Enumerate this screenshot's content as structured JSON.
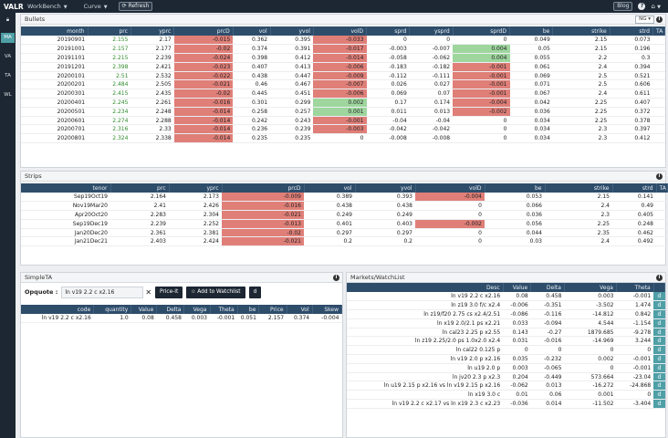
{
  "topbar": {
    "logo": "VALR",
    "menus": [
      "WorkBench",
      "Curve"
    ],
    "refresh_label": "Refresh",
    "blog_label": "Blog",
    "help_glyph": "?",
    "user_glyph": "⌂"
  },
  "sidebar": {
    "items": [
      "MA",
      "VA",
      "TA",
      "WL"
    ],
    "active": "MA"
  },
  "bullets": {
    "title": "Bullets",
    "selector": "NG",
    "columns": [
      "month",
      "prc",
      "yprc",
      "prcD",
      "vol",
      "yvol",
      "volD",
      "sprd",
      "ysprd",
      "sprdD",
      "be",
      "strike",
      "strd",
      "TA"
    ],
    "rows": [
      [
        "20190901",
        "2.155",
        "2.17",
        "-0.015",
        "0.362",
        "0.395",
        "-0.033",
        "0",
        "0",
        "0",
        "0.049",
        "2.15",
        "0.073",
        ""
      ],
      [
        "20191001",
        "2.157",
        "2.177",
        "-0.02",
        "0.374",
        "0.391",
        "-0.017",
        "-0.003",
        "-0.007",
        "0.004",
        "0.05",
        "2.15",
        "0.196",
        ""
      ],
      [
        "20191101",
        "2.215",
        "2.239",
        "-0.024",
        "0.398",
        "0.412",
        "-0.014",
        "-0.058",
        "-0.062",
        "0.004",
        "0.055",
        "2.2",
        "0.3",
        ""
      ],
      [
        "20191201",
        "2.398",
        "2.421",
        "-0.023",
        "0.407",
        "0.413",
        "-0.006",
        "-0.183",
        "-0.182",
        "-0.001",
        "0.061",
        "2.4",
        "0.394",
        ""
      ],
      [
        "20200101",
        "2.51",
        "2.532",
        "-0.022",
        "0.438",
        "0.447",
        "-0.009",
        "-0.112",
        "-0.111",
        "-0.001",
        "0.069",
        "2.5",
        "0.521",
        ""
      ],
      [
        "20200201",
        "2.484",
        "2.505",
        "-0.021",
        "0.46",
        "0.467",
        "-0.007",
        "0.026",
        "0.027",
        "-0.001",
        "0.071",
        "2.5",
        "0.606",
        ""
      ],
      [
        "20200301",
        "2.415",
        "2.435",
        "-0.02",
        "0.445",
        "0.451",
        "-0.006",
        "0.069",
        "0.07",
        "-0.001",
        "0.067",
        "2.4",
        "0.611",
        ""
      ],
      [
        "20200401",
        "2.245",
        "2.261",
        "-0.016",
        "0.301",
        "0.299",
        "0.002",
        "0.17",
        "0.174",
        "-0.004",
        "0.042",
        "2.25",
        "0.407",
        ""
      ],
      [
        "20200501",
        "2.234",
        "2.248",
        "-0.014",
        "0.258",
        "0.257",
        "0.001",
        "0.011",
        "0.013",
        "-0.002",
        "0.036",
        "2.25",
        "0.372",
        ""
      ],
      [
        "20200601",
        "2.274",
        "2.288",
        "-0.014",
        "0.242",
        "0.243",
        "-0.001",
        "-0.04",
        "-0.04",
        "0",
        "0.034",
        "2.25",
        "0.378",
        ""
      ],
      [
        "20200701",
        "2.316",
        "2.33",
        "-0.014",
        "0.236",
        "0.239",
        "-0.003",
        "-0.042",
        "-0.042",
        "0",
        "0.034",
        "2.3",
        "0.397",
        ""
      ],
      [
        "20200801",
        "2.324",
        "2.338",
        "-0.014",
        "0.235",
        "0.235",
        "0",
        "-0.008",
        "-0.008",
        "0",
        "0.034",
        "2.3",
        "0.412",
        ""
      ]
    ]
  },
  "strips": {
    "title": "Strips",
    "columns": [
      "tenor",
      "prc",
      "yprc",
      "prcD",
      "vol",
      "yvol",
      "volD",
      "be",
      "strike",
      "strd",
      "TA"
    ],
    "rows": [
      [
        "Sep19Oct19",
        "2.164",
        "2.173",
        "-0.009",
        "0.389",
        "0.393",
        "-0.004",
        "0.053",
        "2.15",
        "0.141",
        ""
      ],
      [
        "Nov19Mar20",
        "2.41",
        "2.426",
        "-0.016",
        "0.438",
        "0.438",
        "0",
        "0.066",
        "2.4",
        "0.49",
        ""
      ],
      [
        "Apr20Oct20",
        "2.283",
        "2.304",
        "-0.021",
        "0.249",
        "0.249",
        "0",
        "0.036",
        "2.3",
        "0.405",
        ""
      ],
      [
        "Sep19Dec19",
        "2.239",
        "2.252",
        "-0.013",
        "0.401",
        "0.403",
        "-0.002",
        "0.056",
        "2.25",
        "0.248",
        ""
      ],
      [
        "Jan20Dec20",
        "2.361",
        "2.381",
        "-0.02",
        "0.297",
        "0.297",
        "0",
        "0.044",
        "2.35",
        "0.462",
        ""
      ],
      [
        "Jan21Dec21",
        "2.403",
        "2.424",
        "-0.021",
        "0.2",
        "0.2",
        "0",
        "0.03",
        "2.4",
        "0.492",
        ""
      ]
    ]
  },
  "simpleta": {
    "title": "SimpleTA",
    "opquote_label": "Opquote :",
    "opquote_value": "ln v19 2.2 c x2.16",
    "price_it_label": "Price-It",
    "add_watchlist_label": "☆ Add to Watchlist",
    "d_label": "d",
    "columns": [
      "code",
      "quantity",
      "Value",
      "Delta",
      "Vega",
      "Theta",
      "be",
      "Price",
      "Vol",
      "Skew"
    ],
    "row": [
      "ln v19 2.2 c x2.16",
      "1.0",
      "0.08",
      "0.458",
      "0.003",
      "-0.001",
      "0.051",
      "2.157",
      "0.374",
      "-0.004"
    ]
  },
  "watchlist": {
    "title": "Markets/WatchList",
    "columns": [
      "Desc",
      "Value",
      "Delta",
      "Vega",
      "Theta",
      ""
    ],
    "rows": [
      [
        "ln v19 2.2 c x2.16",
        "0.08",
        "0.458",
        "0.003",
        "-0.001",
        "d"
      ],
      [
        "ln z19 3.0 f/c x2.4",
        "-0.006",
        "-0.351",
        "-3.502",
        "1.474",
        "d"
      ],
      [
        "ln z19/f20 2.75 cs x2.4/2.51",
        "-0.086",
        "-0.116",
        "-14.812",
        "0.842",
        "d"
      ],
      [
        "ln x19 2.0/2.1 ps x2.21",
        "0.033",
        "-0.094",
        "4.544",
        "-1.154",
        "d"
      ],
      [
        "ln cal23 2.25 p x2.55",
        "0.143",
        "-0.27",
        "1879.685",
        "-9.278",
        "d"
      ],
      [
        "ln z19 2.25/2.0 ps 1.0x2.0 x2.4",
        "0.031",
        "-0.016",
        "-14.969",
        "3.244",
        "d"
      ],
      [
        "ln cal22 0.125 p",
        "0",
        "0",
        "0",
        "0",
        "d"
      ],
      [
        "ln v19 2.0 p x2.16",
        "0.035",
        "-0.232",
        "0.002",
        "-0.001",
        "d"
      ],
      [
        "ln u19 2.0 p",
        "0.003",
        "-0.065",
        "0",
        "-0.001",
        "d"
      ],
      [
        "ln jv20 2.3 p x2.3",
        "0.204",
        "-0.449",
        "573.664",
        "-23.04",
        "d"
      ],
      [
        "ln u19 2.15 p x2.16 vs ln v19 2.15 p x2.16",
        "-0.062",
        "0.013",
        "-16.272",
        "-24.868",
        "d"
      ],
      [
        "ln x19 3.0 c",
        "0.01",
        "0.06",
        "0.001",
        "0",
        "d"
      ],
      [
        "ln v19 2.2 c x2.17 vs ln x19 2.3 c x2.23",
        "-0.036",
        "0.014",
        "-11.502",
        "-3.404",
        "d"
      ]
    ]
  },
  "colors": {
    "header_bg": "#2e4d6b",
    "negative_cell": "#df7f78",
    "positive_cell": "#9ed69e",
    "accent": "#4f9fa6"
  }
}
